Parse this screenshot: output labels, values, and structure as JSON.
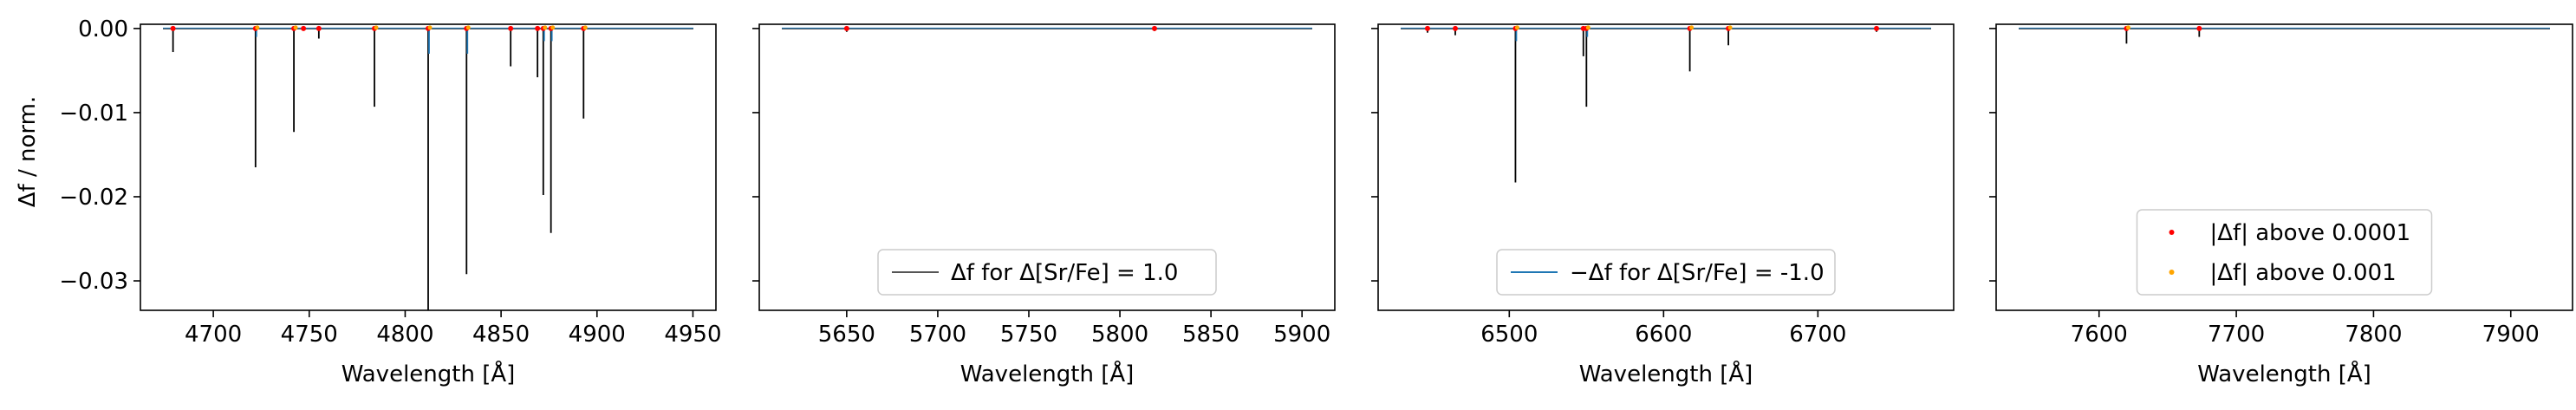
{
  "figure": {
    "ylabel": "Δf / norm.",
    "xlabel": "Wavelength [Å]"
  },
  "colors": {
    "positive_line": "#000000",
    "negative_line": "#1f77b4",
    "dot_above_0001": "#ff0000",
    "dot_above_001": "#ffa500",
    "axes": "#000000",
    "background": "#ffffff"
  },
  "chart_data": [
    {
      "type": "line",
      "panel": 1,
      "xlabel": "Wavelength [Å]",
      "ylabel": "Δf / norm.",
      "xlim": [
        4662,
        4962
      ],
      "ylim": [
        -0.0335,
        0.0005
      ],
      "xticks": [
        4700,
        4750,
        4800,
        4850,
        4900,
        4950
      ],
      "yticks": [
        0.0,
        -0.01,
        -0.02,
        -0.03
      ],
      "ytick_labels": [
        "0.00",
        "−0.01",
        "−0.02",
        "−0.03"
      ],
      "series": [
        {
          "role": "delta_plus",
          "lines": [
            {
              "x": 4679,
              "y": -0.0028
            },
            {
              "x": 4722,
              "y": -0.0165
            },
            {
              "x": 4742,
              "y": -0.0123
            },
            {
              "x": 4755,
              "y": -0.0012
            },
            {
              "x": 4784,
              "y": -0.0093
            },
            {
              "x": 4812,
              "y": -0.0335
            },
            {
              "x": 4832,
              "y": -0.0292
            },
            {
              "x": 4855,
              "y": -0.0045
            },
            {
              "x": 4869,
              "y": -0.0058
            },
            {
              "x": 4872,
              "y": -0.0198
            },
            {
              "x": 4876,
              "y": -0.0243
            },
            {
              "x": 4893,
              "y": -0.0107
            }
          ]
        },
        {
          "role": "delta_minus",
          "lines": [
            {
              "x": 4722,
              "y": -0.001
            },
            {
              "x": 4812,
              "y": -0.003
            },
            {
              "x": 4832,
              "y": -0.003
            },
            {
              "x": 4872,
              "y": -0.0015
            },
            {
              "x": 4876,
              "y": -0.0015
            }
          ]
        }
      ],
      "dots_above_0001": [
        4679,
        4722,
        4742,
        4747,
        4755,
        4784,
        4812,
        4832,
        4855,
        4869,
        4872,
        4876,
        4893
      ],
      "dots_above_001": [
        4722,
        4742,
        4784,
        4812,
        4832,
        4872,
        4876,
        4893
      ]
    },
    {
      "type": "line",
      "panel": 2,
      "xlabel": "Wavelength [Å]",
      "xlim": [
        5602,
        5918
      ],
      "ylim": [
        -0.0335,
        0.0005
      ],
      "xticks": [
        5650,
        5700,
        5750,
        5800,
        5850,
        5900
      ],
      "series": [
        {
          "role": "delta_plus",
          "lines": [
            {
              "x": 5650,
              "y": -0.0004
            },
            {
              "x": 5819,
              "y": -0.0003
            }
          ]
        },
        {
          "role": "delta_minus",
          "lines": []
        }
      ],
      "dots_above_0001": [
        5650,
        5819
      ],
      "dots_above_001": [],
      "legend": {
        "text": "Δf for Δ[Sr/Fe] = 1.0",
        "placement": "lower center"
      }
    },
    {
      "type": "line",
      "panel": 3,
      "xlabel": "Wavelength [Å]",
      "xlim": [
        6415,
        6788
      ],
      "ylim": [
        -0.0335,
        0.0005
      ],
      "xticks": [
        6500,
        6600,
        6700
      ],
      "series": [
        {
          "role": "delta_plus",
          "lines": [
            {
              "x": 6447,
              "y": -0.0005
            },
            {
              "x": 6465,
              "y": -0.0008
            },
            {
              "x": 6504,
              "y": -0.0183
            },
            {
              "x": 6548,
              "y": -0.0033
            },
            {
              "x": 6550,
              "y": -0.0093
            },
            {
              "x": 6617,
              "y": -0.0051
            },
            {
              "x": 6642,
              "y": -0.002
            },
            {
              "x": 6738,
              "y": -0.0004
            }
          ]
        },
        {
          "role": "delta_minus",
          "lines": [
            {
              "x": 6504,
              "y": -0.0015
            },
            {
              "x": 6550,
              "y": -0.001
            }
          ]
        }
      ],
      "dots_above_0001": [
        6447,
        6465,
        6504,
        6548,
        6550,
        6617,
        6642,
        6738
      ],
      "dots_above_001": [
        6504,
        6550,
        6617,
        6642
      ],
      "legend": {
        "text": "−Δf for Δ[Sr/Fe] = -1.0",
        "placement": "lower center"
      }
    },
    {
      "type": "line",
      "panel": 4,
      "xlabel": "Wavelength [Å]",
      "xlim": [
        7525,
        7945
      ],
      "ylim": [
        -0.0335,
        0.0005
      ],
      "xticks": [
        7600,
        7700,
        7800,
        7900
      ],
      "series": [
        {
          "role": "delta_plus",
          "lines": [
            {
              "x": 7620,
              "y": -0.0018
            },
            {
              "x": 7673,
              "y": -0.001
            }
          ]
        },
        {
          "role": "delta_minus",
          "lines": []
        }
      ],
      "dots_above_0001": [
        7620,
        7673
      ],
      "dots_above_001": [
        7620
      ],
      "legend": {
        "entries": [
          "|Δf| above 0.0001",
          "|Δf| above 0.001"
        ],
        "placement": "lower center"
      }
    }
  ]
}
